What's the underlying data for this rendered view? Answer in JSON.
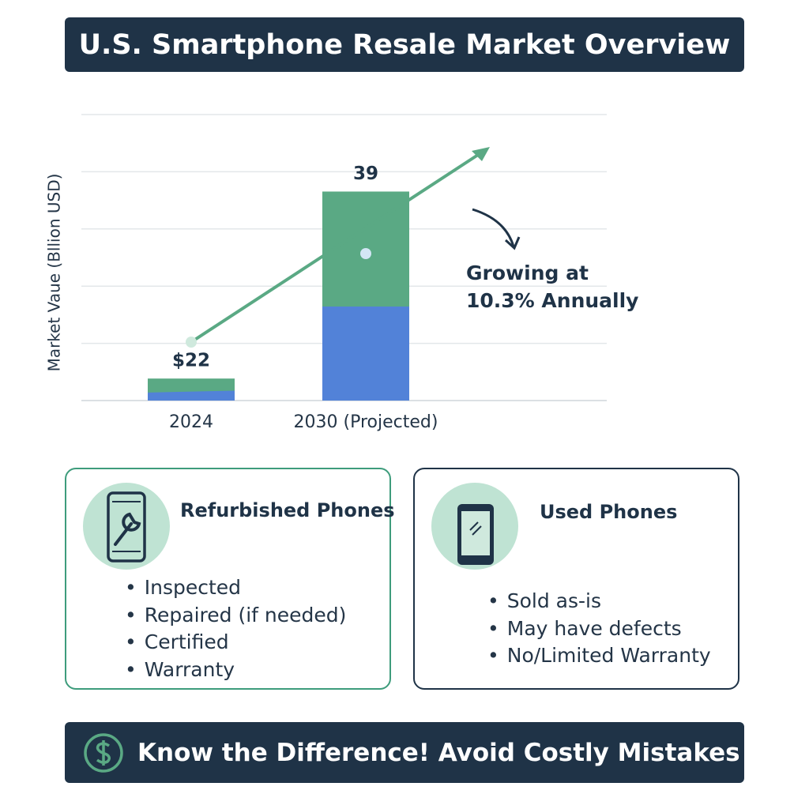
{
  "chart_data": {
    "type": "bar",
    "title": "U.S. Smartphone Resale Market Overview",
    "ylabel": "Market Vaue (Bllion USD)",
    "categories": [
      "2024",
      "2030 (Projected)"
    ],
    "values": [
      22,
      39
    ],
    "value_labels": [
      "$22",
      "39"
    ],
    "color": "#5aa984",
    "base_color": "#5282d8",
    "ylim": [
      20,
      46
    ],
    "grid": true,
    "annotation": "Growing at 10.3% Annually"
  },
  "cards": [
    {
      "title": "Refurbished Phones",
      "items": [
        "Inspected",
        "Repaired (if needed)",
        "Certified",
        "Warranty"
      ]
    },
    {
      "title": "Used Phones",
      "items": [
        "Sold as-is",
        "May have defects",
        "No/Limited Warranty"
      ]
    }
  ],
  "footer": {
    "text": "Know the Difference! Avoid Costly Mistakes"
  }
}
